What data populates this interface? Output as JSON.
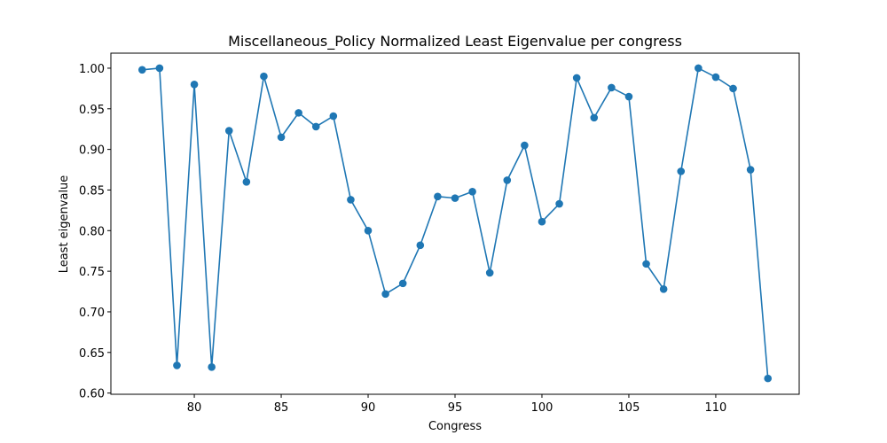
{
  "chart_data": {
    "type": "line",
    "title": "Miscellaneous_Policy Normalized Least Eigenvalue per congress",
    "xlabel": "Congress",
    "ylabel": "Least eigenvalue",
    "xlim": [
      75.2,
      114.8
    ],
    "ylim": [
      0.5985,
      1.0185
    ],
    "xticks": [
      80,
      85,
      90,
      95,
      100,
      105,
      110
    ],
    "yticks": [
      0.6,
      0.65,
      0.7,
      0.75,
      0.8,
      0.85,
      0.9,
      0.95,
      1.0
    ],
    "ytick_labels": [
      "0.60",
      "0.65",
      "0.70",
      "0.75",
      "0.80",
      "0.85",
      "0.90",
      "0.95",
      "1.00"
    ],
    "grid": false,
    "color": "#1f77b4",
    "marker": "circle",
    "series": [
      {
        "x": [
          77,
          78,
          79,
          80,
          81,
          82,
          83,
          84,
          85,
          86,
          87,
          88,
          89,
          90,
          91,
          92,
          93,
          94,
          95,
          96,
          97,
          98,
          99,
          100,
          101,
          102,
          103,
          104,
          105,
          106,
          107,
          108,
          109,
          110,
          111,
          112,
          113
        ],
        "y": [
          0.998,
          1.0,
          0.634,
          0.98,
          0.632,
          0.923,
          0.86,
          0.99,
          0.915,
          0.945,
          0.928,
          0.941,
          0.838,
          0.8,
          0.722,
          0.735,
          0.782,
          0.842,
          0.84,
          0.848,
          0.748,
          0.862,
          0.905,
          0.811,
          0.833,
          0.988,
          0.939,
          0.976,
          0.965,
          0.759,
          0.728,
          0.873,
          1.0,
          0.989,
          0.975,
          0.875,
          0.618
        ]
      }
    ]
  }
}
